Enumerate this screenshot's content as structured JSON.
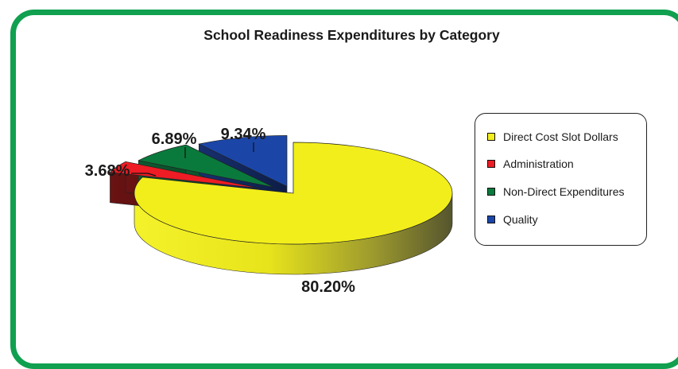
{
  "chart_data": {
    "type": "pie",
    "title": "School Readiness Expenditures by Category",
    "categories": [
      "Direct Cost Slot Dollars",
      "Administration",
      "Non-Direct Expenditures",
      "Quality"
    ],
    "values": [
      80.2,
      3.68,
      6.89,
      9.34
    ],
    "labels": [
      "80.20%",
      "3.68%",
      "6.89%",
      "9.34%"
    ],
    "colors": [
      "#f2ee1b",
      "#ee1c24",
      "#0a7a3c",
      "#1b46a8"
    ],
    "style": "3d-exploded",
    "legend_position": "right"
  }
}
